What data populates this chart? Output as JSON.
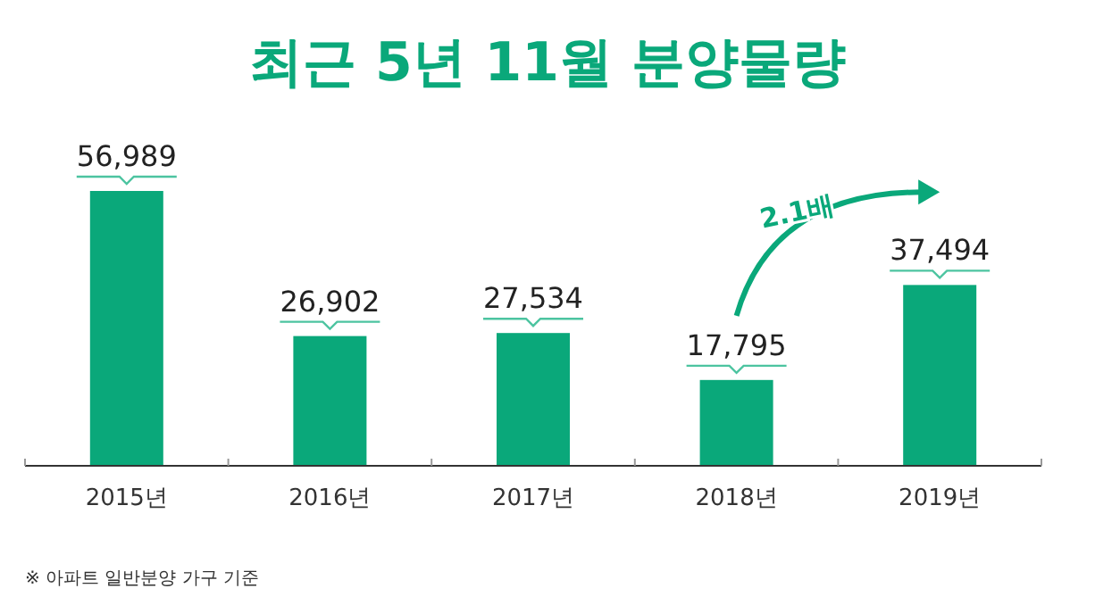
{
  "chart_data": {
    "type": "bar",
    "title": "최근 5년 11월 분양물량",
    "categories": [
      "2015년",
      "2016년",
      "2017년",
      "2018년",
      "2019년"
    ],
    "values": [
      56989,
      26902,
      27534,
      17795,
      37494
    ],
    "value_labels": [
      "56,989",
      "26,902",
      "27,534",
      "17,795",
      "37,494"
    ],
    "color": "#0aa87a",
    "annotations": [
      "2.1배",
      "※ 아파트 일반분양 가구 기준"
    ]
  }
}
